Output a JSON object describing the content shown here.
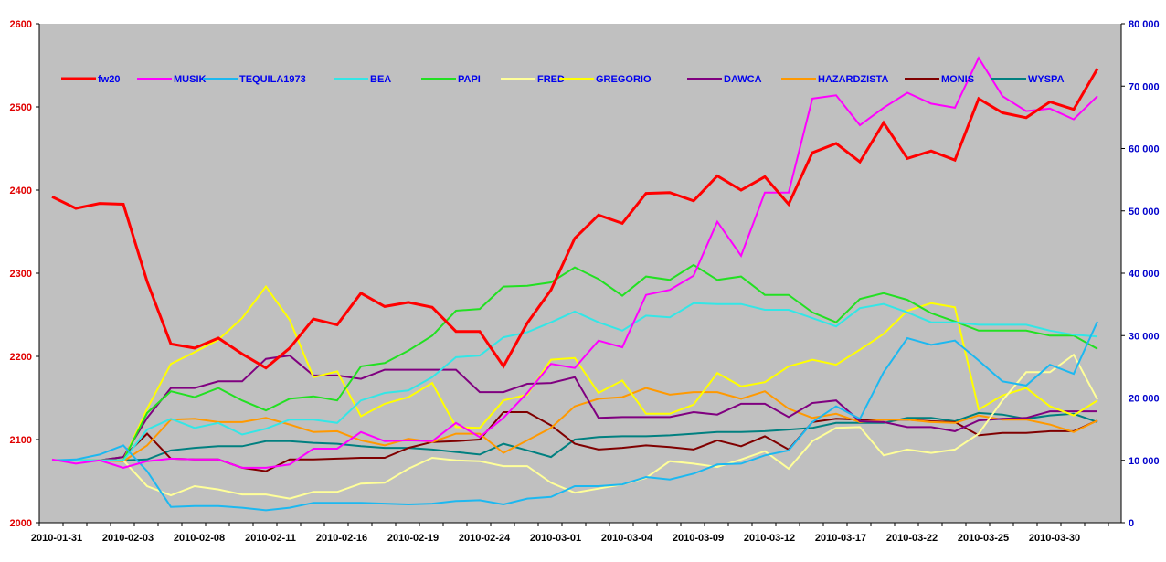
{
  "chart_data": {
    "type": "line",
    "title": "",
    "xlabel": "",
    "ylabel": "",
    "ylim": [
      2000,
      2600
    ],
    "y_ticks": [
      2000,
      2100,
      2200,
      2300,
      2400,
      2500,
      2600
    ],
    "y2lim": [
      0,
      80000
    ],
    "y2_tick_labels": [
      "0",
      "10 000",
      "20 000",
      "30 000",
      "40 000",
      "50 000",
      "60 000",
      "70 000",
      "80 000"
    ],
    "n_points": 45,
    "x_label_every": 3,
    "x_labels": [
      "2010-01-31",
      "2010-02-03",
      "2010-02-08",
      "2010-02-11",
      "2010-02-16",
      "2010-02-19",
      "2010-02-24",
      "2010-03-01",
      "2010-03-04",
      "2010-03-09",
      "2010-03-12",
      "2010-03-17",
      "2010-03-22",
      "2010-03-25",
      "2010-03-30"
    ],
    "grid": false,
    "legend_position": "top",
    "background": "#C0C0C0",
    "series": [
      {
        "name": "fw20",
        "color": "#FF0000",
        "width": 3,
        "values": [
          2392,
          2378,
          2384,
          2383,
          2290,
          2215,
          2210,
          2222,
          2203,
          2186,
          2210,
          2245,
          2238,
          2276,
          2260,
          2265,
          2259,
          2230,
          2230,
          2188,
          2240,
          2280,
          2342,
          2370,
          2360,
          2396,
          2397,
          2387,
          2417,
          2400,
          2416,
          2383,
          2445,
          2456,
          2434,
          2481,
          2438,
          2447,
          2436,
          2510,
          2493,
          2487,
          2506,
          2497,
          2546
        ]
      },
      {
        "name": "MUSIK",
        "color": "#FF00FF",
        "width": 2,
        "values": [
          2076,
          2071,
          2075,
          2066,
          2074,
          2077,
          2076,
          2076,
          2066,
          2066,
          2070,
          2089,
          2089,
          2109,
          2098,
          2099,
          2098,
          2120,
          2103,
          2126,
          2156,
          2191,
          2186,
          2219,
          2211,
          2274,
          2280,
          2297,
          2362,
          2321,
          2397,
          2397,
          2510,
          2514,
          2478,
          2499,
          2517,
          2504,
          2499,
          2559,
          2513,
          2495,
          2498,
          2485,
          2513
        ]
      },
      {
        "name": "TEQUILA1973",
        "color": "#1CB8F0",
        "width": 2,
        "values": [
          2075,
          2076,
          2082,
          2093,
          2062,
          2019,
          2020,
          2020,
          2018,
          2015,
          2018,
          2024,
          2024,
          2024,
          2023,
          2022,
          2023,
          2026,
          2027,
          2022,
          2029,
          2031,
          2044,
          2044,
          2046,
          2055,
          2052,
          2059,
          2070,
          2071,
          2081,
          2087,
          2121,
          2140,
          2125,
          2181,
          2222,
          2214,
          2219,
          2195,
          2170,
          2165,
          2190,
          2179,
          2242
        ]
      },
      {
        "name": "BEA",
        "color": "#33E6E6",
        "width": 2,
        "values": [
          2075,
          2075,
          2075,
          2075,
          2112,
          2125,
          2114,
          2120,
          2106,
          2113,
          2124,
          2124,
          2120,
          2147,
          2156,
          2159,
          2175,
          2199,
          2201,
          2223,
          2229,
          2241,
          2254,
          2241,
          2231,
          2249,
          2247,
          2264,
          2263,
          2263,
          2256,
          2256,
          2246,
          2236,
          2258,
          2263,
          2253,
          2241,
          2241,
          2238,
          2238,
          2238,
          2231,
          2226,
          2224
        ]
      },
      {
        "name": "PAPI",
        "color": "#22E022",
        "width": 2,
        "values": [
          2075,
          2075,
          2075,
          2075,
          2132,
          2158,
          2151,
          2162,
          2147,
          2135,
          2149,
          2152,
          2147,
          2188,
          2192,
          2207,
          2225,
          2255,
          2257,
          2284,
          2285,
          2289,
          2307,
          2293,
          2273,
          2296,
          2292,
          2310,
          2292,
          2296,
          2274,
          2274,
          2253,
          2241,
          2269,
          2276,
          2268,
          2252,
          2242,
          2231,
          2231,
          2231,
          2225,
          2225,
          2209
        ]
      },
      {
        "name": "FRED",
        "color": "#FFFF99",
        "width": 2,
        "values": [
          2075,
          2075,
          2075,
          2075,
          2044,
          2033,
          2044,
          2040,
          2034,
          2034,
          2029,
          2037,
          2037,
          2047,
          2048,
          2065,
          2078,
          2075,
          2074,
          2068,
          2068,
          2048,
          2036,
          2041,
          2046,
          2054,
          2074,
          2071,
          2067,
          2076,
          2086,
          2065,
          2098,
          2114,
          2115,
          2081,
          2088,
          2084,
          2088,
          2107,
          2147,
          2181,
          2181,
          2202,
          2148
        ]
      },
      {
        "name": "GREGORIO",
        "color": "#FFFF00",
        "width": 2,
        "values": [
          2075,
          2075,
          2075,
          2075,
          2137,
          2191,
          2205,
          2220,
          2246,
          2284,
          2244,
          2175,
          2182,
          2128,
          2143,
          2151,
          2168,
          2115,
          2114,
          2147,
          2154,
          2196,
          2198,
          2156,
          2171,
          2131,
          2131,
          2142,
          2180,
          2164,
          2169,
          2188,
          2196,
          2190,
          2208,
          2227,
          2255,
          2264,
          2259,
          2136,
          2153,
          2162,
          2140,
          2129,
          2147
        ]
      },
      {
        "name": "DAWCA",
        "color": "#800080",
        "width": 2,
        "values": [
          2075,
          2075,
          2075,
          2079,
          2126,
          2162,
          2162,
          2170,
          2170,
          2197,
          2201,
          2177,
          2177,
          2173,
          2184,
          2184,
          2184,
          2184,
          2157,
          2157,
          2167,
          2168,
          2175,
          2126,
          2127,
          2127,
          2127,
          2133,
          2130,
          2143,
          2143,
          2127,
          2144,
          2147,
          2122,
          2121,
          2115,
          2115,
          2110,
          2123,
          2125,
          2126,
          2134,
          2134,
          2134
        ]
      },
      {
        "name": "HAZARDZISTA",
        "color": "#FF9900",
        "width": 2,
        "values": [
          2075,
          2075,
          2075,
          2074,
          2093,
          2124,
          2125,
          2121,
          2121,
          2126,
          2118,
          2109,
          2110,
          2099,
          2093,
          2101,
          2097,
          2107,
          2107,
          2084,
          2099,
          2114,
          2140,
          2149,
          2151,
          2162,
          2154,
          2157,
          2157,
          2149,
          2158,
          2137,
          2126,
          2131,
          2121,
          2124,
          2124,
          2121,
          2120,
          2129,
          2124,
          2124,
          2118,
          2109,
          2123
        ]
      },
      {
        "name": "MONIS",
        "color": "#800000",
        "width": 2,
        "values": [
          2075,
          2075,
          2075,
          2079,
          2107,
          2077,
          2076,
          2076,
          2066,
          2062,
          2076,
          2076,
          2077,
          2078,
          2078,
          2090,
          2097,
          2098,
          2100,
          2133,
          2133,
          2117,
          2095,
          2088,
          2090,
          2093,
          2091,
          2088,
          2099,
          2092,
          2104,
          2088,
          2121,
          2125,
          2124,
          2124,
          2124,
          2122,
          2121,
          2105,
          2108,
          2108,
          2110,
          2110,
          2123
        ]
      },
      {
        "name": "WYSPA",
        "color": "#008080",
        "width": 2,
        "values": [
          2075,
          2075,
          2075,
          2075,
          2076,
          2087,
          2090,
          2092,
          2092,
          2098,
          2098,
          2096,
          2095,
          2092,
          2090,
          2090,
          2088,
          2085,
          2082,
          2095,
          2087,
          2079,
          2100,
          2103,
          2104,
          2104,
          2105,
          2107,
          2109,
          2109,
          2110,
          2112,
          2114,
          2120,
          2120,
          2120,
          2126,
          2126,
          2122,
          2132,
          2130,
          2125,
          2129,
          2131,
          2121
        ]
      }
    ]
  }
}
